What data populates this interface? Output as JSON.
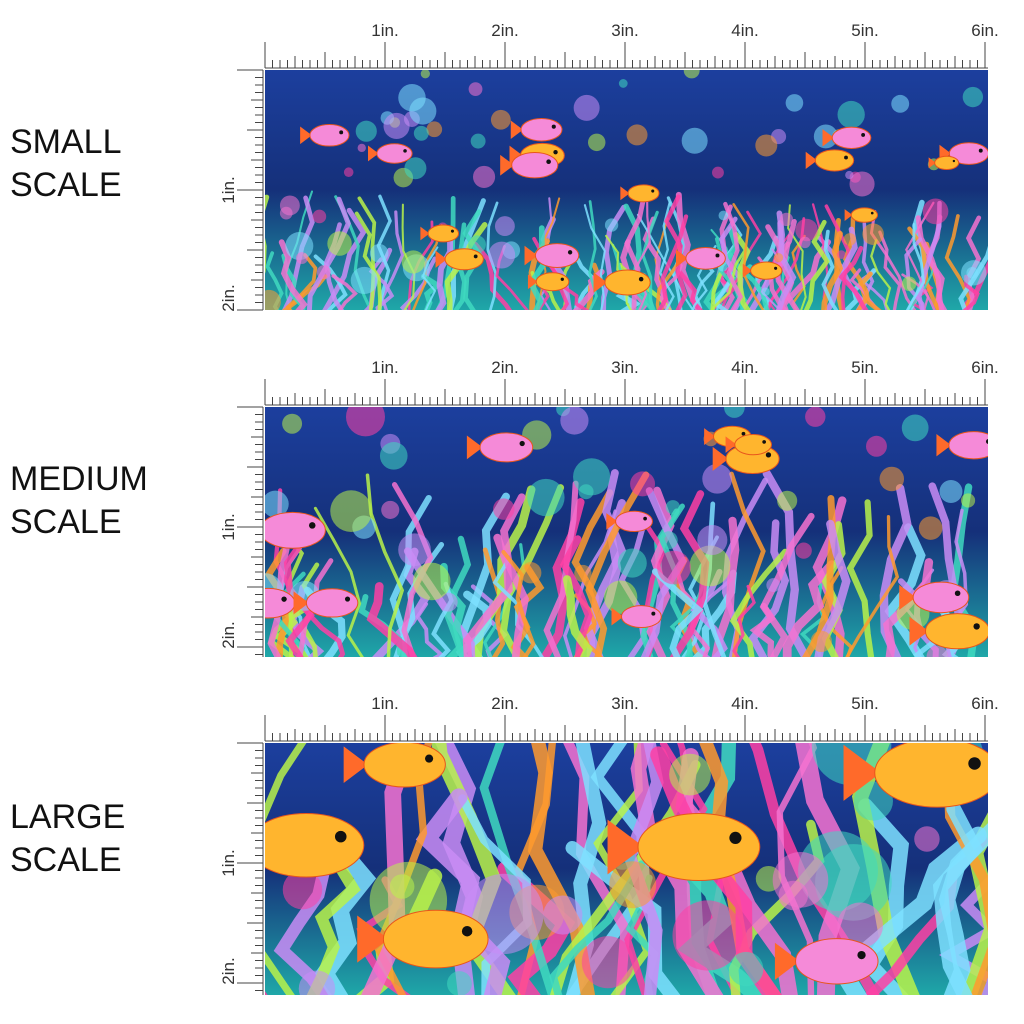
{
  "rows": [
    {
      "label": [
        "SMALL",
        "SCALE"
      ],
      "x_ruler": [
        "1in.",
        "2in.",
        "3in.",
        "4in.",
        "5in.",
        "6in."
      ],
      "y_ruler": [
        "1in.",
        "2in."
      ]
    },
    {
      "label": [
        "MEDIUM",
        "SCALE"
      ],
      "x_ruler": [
        "1in.",
        "2in.",
        "3in.",
        "4in.",
        "5in.",
        "6in."
      ],
      "y_ruler": [
        "1in.",
        "2in."
      ]
    },
    {
      "label": [
        "LARGE",
        "SCALE"
      ],
      "x_ruler": [
        "1in.",
        "2in.",
        "3in.",
        "4in.",
        "5in.",
        "6in."
      ],
      "y_ruler": [
        "1in.",
        "2in."
      ]
    }
  ]
}
